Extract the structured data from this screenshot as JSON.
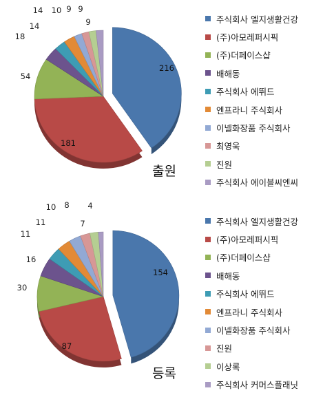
{
  "chart_data": [
    {
      "type": "pie",
      "title": "출원",
      "legend_position": "right",
      "categories": [
        "주식회사 엘지생활건강",
        "(주)아모레퍼시픽",
        "(주)더페이스샵",
        "배해동",
        "주식회사 에뛰드",
        "엔프라니 주식회사",
        "이넬화장품 주식회사",
        "최영욱",
        "진원",
        "주식회사 에이블씨엔씨"
      ],
      "values": [
        216,
        181,
        54,
        18,
        14,
        14,
        10,
        9,
        9,
        9
      ],
      "colors": [
        "#4a77ac",
        "#b84a47",
        "#93b356",
        "#6c538d",
        "#3e9cb4",
        "#e28a36",
        "#92a9d4",
        "#d79796",
        "#b5ce92",
        "#a99bc3"
      ]
    },
    {
      "type": "pie",
      "title": "등록",
      "legend_position": "right",
      "categories": [
        "주식회사 엘지생활건강",
        "(주)아모레퍼시픽",
        "(주)더페이스샵",
        "배해동",
        "주식회사 에뛰드",
        "엔프라니 주식회사",
        "이넬화장품 주식회사",
        "진원",
        "이상록",
        "주식회사 커머스플래닛"
      ],
      "values": [
        154,
        87,
        30,
        16,
        11,
        11,
        10,
        8,
        7,
        4
      ],
      "colors": [
        "#4a77ac",
        "#b84a47",
        "#93b356",
        "#6c538d",
        "#3e9cb4",
        "#e28a36",
        "#92a9d4",
        "#d79796",
        "#b5ce92",
        "#a99bc3"
      ]
    }
  ]
}
